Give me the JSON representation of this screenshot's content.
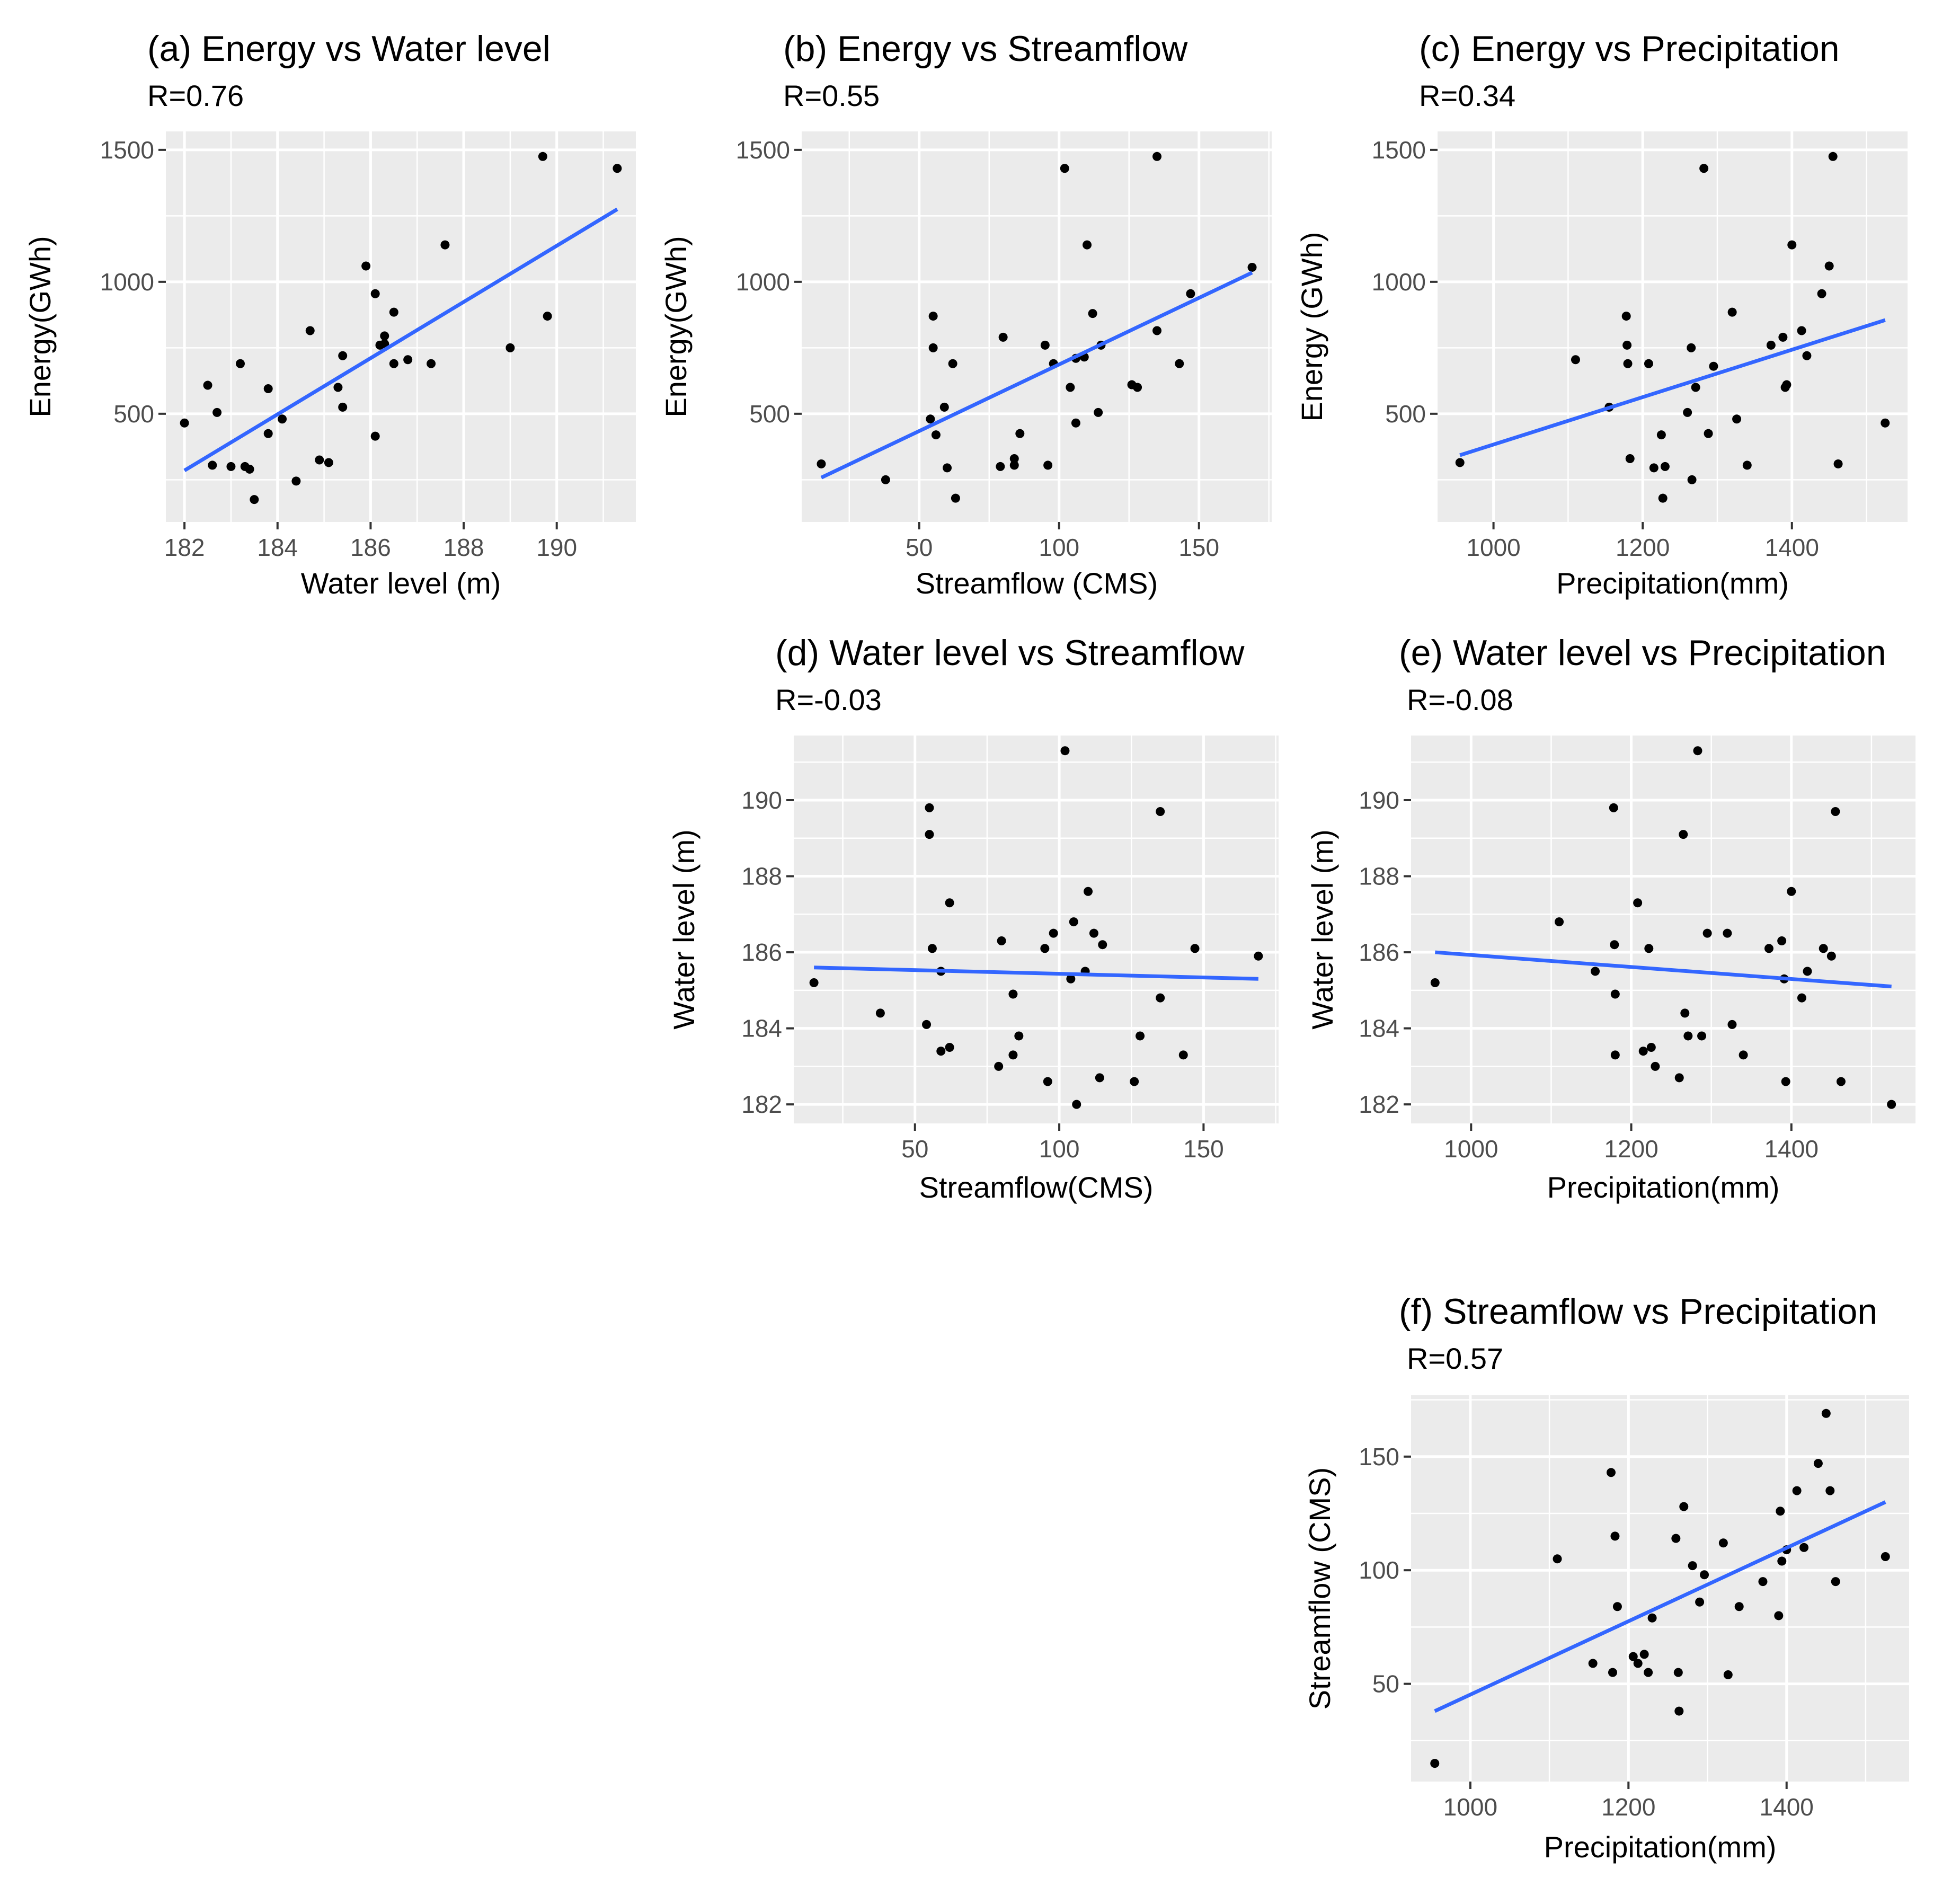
{
  "chart_data": [
    {
      "id": "a",
      "type": "scatter",
      "title": "(a) Energy vs Water level",
      "r_text": "R=0.76",
      "xlabel": "Water level (m)",
      "ylabel": "Energy(GWh)",
      "xlim": [
        181.6,
        191.7
      ],
      "ylim": [
        90,
        1570
      ],
      "xticks": [
        182,
        184,
        186,
        188,
        190
      ],
      "xtick_labels": [
        "182",
        "184",
        "186",
        "188",
        "190"
      ],
      "yticks": [
        500,
        1000,
        1500
      ],
      "ytick_labels": [
        "500",
        "1000",
        "1500"
      ],
      "points": [
        [
          182.0,
          465
        ],
        [
          182.5,
          608
        ],
        [
          182.6,
          305
        ],
        [
          182.7,
          505
        ],
        [
          183.0,
          300
        ],
        [
          183.2,
          690
        ],
        [
          183.3,
          300
        ],
        [
          183.4,
          290
        ],
        [
          183.5,
          175
        ],
        [
          183.8,
          595
        ],
        [
          183.8,
          425
        ],
        [
          184.1,
          480
        ],
        [
          184.4,
          245
        ],
        [
          184.7,
          815
        ],
        [
          184.9,
          325
        ],
        [
          185.1,
          315
        ],
        [
          185.3,
          600
        ],
        [
          185.4,
          720
        ],
        [
          185.4,
          525
        ],
        [
          185.9,
          1060
        ],
        [
          186.1,
          955
        ],
        [
          186.1,
          415
        ],
        [
          186.2,
          760
        ],
        [
          186.3,
          765
        ],
        [
          186.3,
          795
        ],
        [
          186.5,
          885
        ],
        [
          186.5,
          690
        ],
        [
          186.8,
          705
        ],
        [
          187.3,
          690
        ],
        [
          187.6,
          1140
        ],
        [
          189.0,
          750
        ],
        [
          189.7,
          1475
        ],
        [
          189.8,
          870
        ],
        [
          191.3,
          1430
        ]
      ],
      "fit": [
        [
          182.0,
          285
        ],
        [
          191.3,
          1275
        ]
      ]
    },
    {
      "id": "b",
      "type": "scatter",
      "title": "(b) Energy vs Streamflow",
      "r_text": "R=0.55",
      "xlabel": "Streamflow (CMS)",
      "ylabel": "Energy(GWh)",
      "xlim": [
        8,
        176
      ],
      "ylim": [
        90,
        1570
      ],
      "xticks": [
        50,
        100,
        150
      ],
      "xtick_labels": [
        "50",
        "100",
        "150"
      ],
      "yticks": [
        500,
        1000,
        1500
      ],
      "ytick_labels": [
        "500",
        "1000",
        "1500"
      ],
      "points": [
        [
          15,
          310
        ],
        [
          38,
          250
        ],
        [
          54,
          480
        ],
        [
          55,
          870
        ],
        [
          55,
          750
        ],
        [
          56,
          420
        ],
        [
          59,
          525
        ],
        [
          60,
          295
        ],
        [
          62,
          690
        ],
        [
          63,
          180
        ],
        [
          79,
          300
        ],
        [
          80,
          790
        ],
        [
          84,
          305
        ],
        [
          84,
          330
        ],
        [
          86,
          425
        ],
        [
          95,
          760
        ],
        [
          96,
          305
        ],
        [
          98,
          690
        ],
        [
          102,
          1430
        ],
        [
          104,
          600
        ],
        [
          106,
          465
        ],
        [
          106,
          710
        ],
        [
          109,
          715
        ],
        [
          110,
          1140
        ],
        [
          112,
          880
        ],
        [
          114,
          505
        ],
        [
          115,
          760
        ],
        [
          126,
          610
        ],
        [
          128,
          600
        ],
        [
          135,
          815
        ],
        [
          135,
          1475
        ],
        [
          143,
          690
        ],
        [
          147,
          955
        ],
        [
          169,
          1055
        ]
      ],
      "fit": [
        [
          15,
          258
        ],
        [
          169,
          1035
        ]
      ]
    },
    {
      "id": "c",
      "type": "scatter",
      "title": "(c) Energy vs Precipitation",
      "r_text": "R=0.34",
      "xlabel": "Precipitation(mm)",
      "ylabel": "Energy (GWh)",
      "xlim": [
        925,
        1555
      ],
      "ylim": [
        90,
        1570
      ],
      "xticks": [
        1000,
        1200,
        1400
      ],
      "xtick_labels": [
        "1000",
        "1200",
        "1400"
      ],
      "yticks": [
        500,
        1000,
        1500
      ],
      "ytick_labels": [
        "500",
        "1000",
        "1500"
      ],
      "points": [
        [
          955,
          315
        ],
        [
          1110,
          705
        ],
        [
          1155,
          525
        ],
        [
          1178,
          870
        ],
        [
          1179,
          760
        ],
        [
          1180,
          690
        ],
        [
          1183,
          330
        ],
        [
          1208,
          690
        ],
        [
          1215,
          295
        ],
        [
          1225,
          420
        ],
        [
          1227,
          180
        ],
        [
          1230,
          300
        ],
        [
          1260,
          505
        ],
        [
          1265,
          750
        ],
        [
          1266,
          250
        ],
        [
          1271,
          600
        ],
        [
          1282,
          1430
        ],
        [
          1288,
          425
        ],
        [
          1295,
          680
        ],
        [
          1320,
          885
        ],
        [
          1326,
          480
        ],
        [
          1340,
          305
        ],
        [
          1372,
          760
        ],
        [
          1388,
          790
        ],
        [
          1391,
          600
        ],
        [
          1393,
          610
        ],
        [
          1400,
          1140
        ],
        [
          1413,
          815
        ],
        [
          1420,
          720
        ],
        [
          1440,
          955
        ],
        [
          1450,
          1060
        ],
        [
          1455,
          1475
        ],
        [
          1462,
          310
        ],
        [
          1525,
          465
        ]
      ],
      "fit": [
        [
          955,
          343
        ],
        [
          1525,
          855
        ]
      ]
    },
    {
      "id": "d",
      "type": "scatter",
      "title": "(d) Water level vs Streamflow",
      "r_text": "R=-0.03",
      "xlabel": "Streamflow(CMS)",
      "ylabel": "Water level (m)",
      "xlim": [
        8,
        176
      ],
      "ylim": [
        181.5,
        191.7
      ],
      "xticks": [
        50,
        100,
        150
      ],
      "xtick_labels": [
        "50",
        "100",
        "150"
      ],
      "yticks": [
        182,
        184,
        186,
        188,
        190
      ],
      "ytick_labels": [
        "182",
        "184",
        "186",
        "188",
        "190"
      ],
      "points": [
        [
          15,
          185.2
        ],
        [
          38,
          184.4
        ],
        [
          54,
          184.1
        ],
        [
          55,
          189.8
        ],
        [
          55,
          189.1
        ],
        [
          56,
          186.1
        ],
        [
          59,
          185.5
        ],
        [
          59,
          183.4
        ],
        [
          62,
          183.5
        ],
        [
          62,
          187.3
        ],
        [
          79,
          183.0
        ],
        [
          80,
          186.3
        ],
        [
          84,
          183.3
        ],
        [
          84,
          184.9
        ],
        [
          86,
          183.8
        ],
        [
          95,
          186.1
        ],
        [
          96,
          182.6
        ],
        [
          98,
          186.5
        ],
        [
          102,
          191.3
        ],
        [
          104,
          185.3
        ],
        [
          105,
          186.8
        ],
        [
          106,
          182.0
        ],
        [
          109,
          185.5
        ],
        [
          110,
          187.6
        ],
        [
          112,
          186.5
        ],
        [
          114,
          182.7
        ],
        [
          115,
          186.2
        ],
        [
          126,
          182.6
        ],
        [
          128,
          183.8
        ],
        [
          135,
          184.8
        ],
        [
          135,
          189.7
        ],
        [
          143,
          183.3
        ],
        [
          147,
          186.1
        ],
        [
          169,
          185.9
        ]
      ],
      "fit": [
        [
          15,
          185.6
        ],
        [
          169,
          185.3
        ]
      ]
    },
    {
      "id": "e",
      "type": "scatter",
      "title": "(e)  Water level vs Precipitation",
      "r_text": "R=-0.08",
      "xlabel": "Precipitation(mm)",
      "ylabel": "Water level (m)",
      "xlim": [
        925,
        1555
      ],
      "ylim": [
        181.5,
        191.7
      ],
      "xticks": [
        1000,
        1200,
        1400
      ],
      "xtick_labels": [
        "1000",
        "1200",
        "1400"
      ],
      "yticks": [
        182,
        184,
        186,
        188,
        190
      ],
      "ytick_labels": [
        "182",
        "184",
        "186",
        "188",
        "190"
      ],
      "points": [
        [
          955,
          185.2
        ],
        [
          1110,
          186.8
        ],
        [
          1155,
          185.5
        ],
        [
          1178,
          189.8
        ],
        [
          1179,
          186.2
        ],
        [
          1180,
          184.9
        ],
        [
          1180,
          183.3
        ],
        [
          1208,
          187.3
        ],
        [
          1215,
          183.4
        ],
        [
          1222,
          186.1
        ],
        [
          1225,
          183.5
        ],
        [
          1230,
          183.0
        ],
        [
          1260,
          182.7
        ],
        [
          1265,
          189.1
        ],
        [
          1267,
          184.4
        ],
        [
          1271,
          183.8
        ],
        [
          1283,
          191.3
        ],
        [
          1288,
          183.8
        ],
        [
          1295,
          186.5
        ],
        [
          1320,
          186.5
        ],
        [
          1326,
          184.1
        ],
        [
          1340,
          183.3
        ],
        [
          1372,
          186.1
        ],
        [
          1388,
          186.3
        ],
        [
          1391,
          185.3
        ],
        [
          1393,
          182.6
        ],
        [
          1400,
          187.6
        ],
        [
          1413,
          184.8
        ],
        [
          1420,
          185.5
        ],
        [
          1440,
          186.1
        ],
        [
          1450,
          185.9
        ],
        [
          1455,
          189.7
        ],
        [
          1462,
          182.6
        ],
        [
          1525,
          182.0
        ]
      ],
      "fit": [
        [
          955,
          186.0
        ],
        [
          1525,
          185.1
        ]
      ]
    },
    {
      "id": "f",
      "type": "scatter",
      "title": "(f) Streamflow vs Precipitation",
      "r_text": "R=0.57",
      "xlabel": "Precipitation(mm)",
      "ylabel": "Streamflow (CMS)",
      "xlim": [
        925,
        1555
      ],
      "ylim": [
        7,
        177
      ],
      "xticks": [
        1000,
        1200,
        1400
      ],
      "xtick_labels": [
        "1000",
        "1200",
        "1400"
      ],
      "yticks": [
        50,
        100,
        150
      ],
      "ytick_labels": [
        "50",
        "100",
        "150"
      ],
      "points": [
        [
          955,
          15
        ],
        [
          1110,
          105
        ],
        [
          1155,
          59
        ],
        [
          1178,
          143
        ],
        [
          1180,
          55
        ],
        [
          1183,
          115
        ],
        [
          1186,
          84
        ],
        [
          1206,
          62
        ],
        [
          1212,
          59
        ],
        [
          1220,
          63
        ],
        [
          1225,
          55
        ],
        [
          1230,
          79
        ],
        [
          1260,
          114
        ],
        [
          1263,
          55
        ],
        [
          1264,
          38
        ],
        [
          1270,
          128
        ],
        [
          1281,
          102
        ],
        [
          1290,
          86
        ],
        [
          1296,
          98
        ],
        [
          1320,
          112
        ],
        [
          1326,
          54
        ],
        [
          1340,
          84
        ],
        [
          1370,
          95
        ],
        [
          1390,
          80
        ],
        [
          1392,
          126
        ],
        [
          1394,
          104
        ],
        [
          1400,
          109
        ],
        [
          1413,
          135
        ],
        [
          1422,
          110
        ],
        [
          1440,
          147
        ],
        [
          1450,
          169
        ],
        [
          1455,
          135
        ],
        [
          1462,
          95
        ],
        [
          1525,
          106
        ]
      ],
      "fit": [
        [
          955,
          38
        ],
        [
          1525,
          130
        ]
      ]
    }
  ]
}
